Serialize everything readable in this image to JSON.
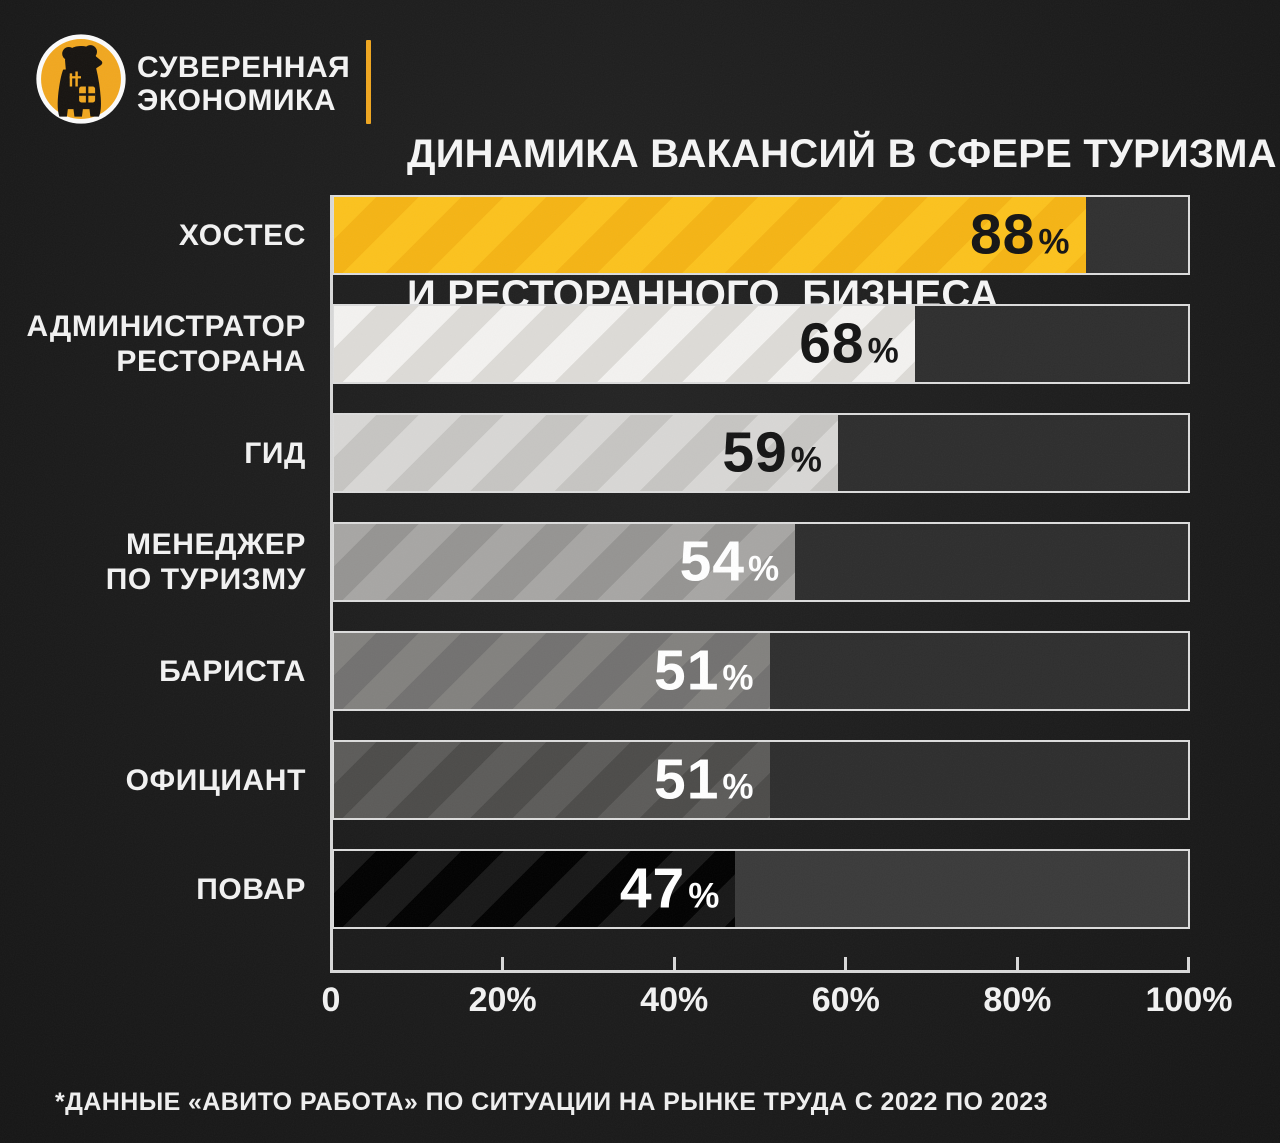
{
  "brand": {
    "logo_icon": "bear-in-circle-logo",
    "name_line1": "СУВЕРЕННАЯ",
    "name_line2": "ЭКОНОМИКА"
  },
  "title": {
    "line1": "ДИНАМИКА ВАКАНСИЙ В СФЕРЕ ТУРИЗМА",
    "line2": "И РЕСТОРАННОГО  БИЗНЕСА"
  },
  "chart_data": {
    "type": "bar",
    "orientation": "horizontal",
    "title": "ДИНАМИКА ВАКАНСИЙ В СФЕРЕ ТУРИЗМА И РЕСТОРАННОГО БИЗНЕСА",
    "categories": [
      "ХОСТЕС",
      "АДМИНИСТРАТОР РЕСТОРАНА",
      "ГИД",
      "МЕНЕДЖЕР ПО ТУРИЗМУ",
      "БАРИСТА",
      "ОФИЦИАНТ",
      "ПОВАР"
    ],
    "label_lines": [
      [
        "ХОСТЕС"
      ],
      [
        "АДМИНИСТРАТОР",
        "РЕСТОРАНА"
      ],
      [
        "ГИД"
      ],
      [
        "МЕНЕДЖЕР",
        "ПО ТУРИЗМУ"
      ],
      [
        "БАРИСТА"
      ],
      [
        "ОФИЦИАНТ"
      ],
      [
        "ПОВАР"
      ]
    ],
    "values": [
      88,
      68,
      59,
      54,
      51,
      51,
      47
    ],
    "unit": "%",
    "xlim": [
      0,
      100
    ],
    "grid": false,
    "legend": null,
    "ticks": [
      {
        "label": "0",
        "pos": 0
      },
      {
        "label": "20%",
        "pos": 0.2
      },
      {
        "label": "40%",
        "pos": 0.4
      },
      {
        "label": "60%",
        "pos": 0.6
      },
      {
        "label": "80%",
        "pos": 0.8
      },
      {
        "label": "100%",
        "pos": 1.0
      }
    ],
    "styles": {
      "axis_color": "#d8d8d8",
      "bars": [
        {
          "base": "#fcc21d",
          "stripe": "#f5b414",
          "text": "#141414",
          "track": "#303030"
        },
        {
          "base": "#f3f2f0",
          "stripe": "#dddbd7",
          "text": "#141414",
          "track": "#2e2e2e"
        },
        {
          "base": "#d8d7d5",
          "stripe": "#c6c5c2",
          "text": "#141414",
          "track": "#2d2d2d"
        },
        {
          "base": "#a7a6a4",
          "stripe": "#959492",
          "text": "#ffffff",
          "track": "#2d2d2d"
        },
        {
          "base": "#82817e",
          "stripe": "#727170",
          "text": "#ffffff",
          "track": "#2e2e2e"
        },
        {
          "base": "#5c5b59",
          "stripe": "#4c4b49",
          "text": "#ffffff",
          "track": "#2d2d2d"
        },
        {
          "base": "#171717",
          "stripe": "#000000",
          "text": "#ffffff",
          "track": "#3a3a3a"
        }
      ]
    }
  },
  "footnote": "*ДАННЫЕ «АВИТО РАБОТА» ПО СИТУАЦИИ НА РЫНКЕ ТРУДА С 2022 ПО 2023",
  "colors": {
    "background": "#1b1b1b",
    "accent_orange": "#efa61f",
    "bar_yellow": "#fcc21d",
    "text_white": "#f4f4f4"
  }
}
